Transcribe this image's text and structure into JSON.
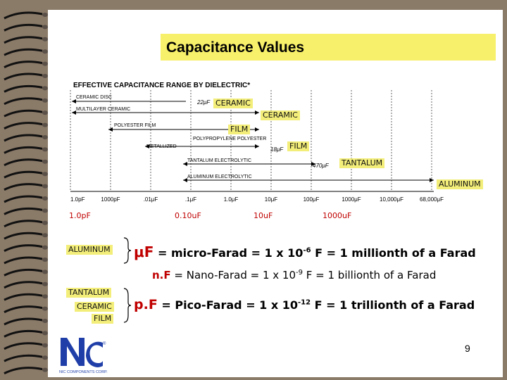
{
  "title": "Capacitance Values",
  "chart": {
    "heading": "EFFECTIVE CAPACITANCE RANGE BY DIELECTRIC*",
    "row_labels": [
      "CERAMIC DISC",
      "MULTILAYER CERAMIC",
      "POLYESTER FILM",
      "POLYPROPYLENE POLYESTER",
      "METALLIZED",
      "TANTALUM ELECTROLYTIC",
      "ALUMINUM ELECTROLYTIC"
    ],
    "end_values": [
      "22μF",
      "18μF",
      "470μF"
    ],
    "tick_labels": [
      "1.0pF",
      "1000pF",
      ".01μF",
      ".1μF",
      "1.0μF",
      "10μF",
      "100μF",
      "1000μF",
      "10,000μF",
      "68,000μF"
    ],
    "red_labels": [
      "1.0pF",
      "0.10uF",
      "10uF",
      "1000uF"
    ],
    "tags": [
      "CERAMIC",
      "CERAMIC",
      "FILM",
      "FILM",
      "TANTALUM",
      "ALUMINUM"
    ]
  },
  "left_tags": {
    "aluminum": "ALUMINUM",
    "tantalum": "TANTALUM",
    "ceramic": "CERAMIC",
    "film": "FILM"
  },
  "definitions": {
    "micro_sym": "μF",
    "micro_text_a": " = micro-Farad = 1 x 10",
    "micro_exp": "-6",
    "micro_text_b": " F = 1 millionth of a Farad",
    "nano_sym": "n.F",
    "nano_text_a": " = Nano-Farad = 1 x 10",
    "nano_exp": "-9",
    "nano_text_b": " F = 1 billionth of a Farad",
    "pico_sym": "p.F",
    "pico_text_a": " = Pico-Farad = 1 x 10",
    "pico_exp": "-12",
    "pico_text_b": " F = 1 trillionth of a Farad"
  },
  "logo": {
    "mark": "Nc",
    "caption": "NIC COMPONENTS CORP.",
    "reg": "®"
  },
  "page_number": "9",
  "colors": {
    "tag_bg": "#f3ee7a",
    "title_bg": "#f7f06a",
    "red": "#c00000",
    "logo_blue": "#1f3ea8"
  }
}
